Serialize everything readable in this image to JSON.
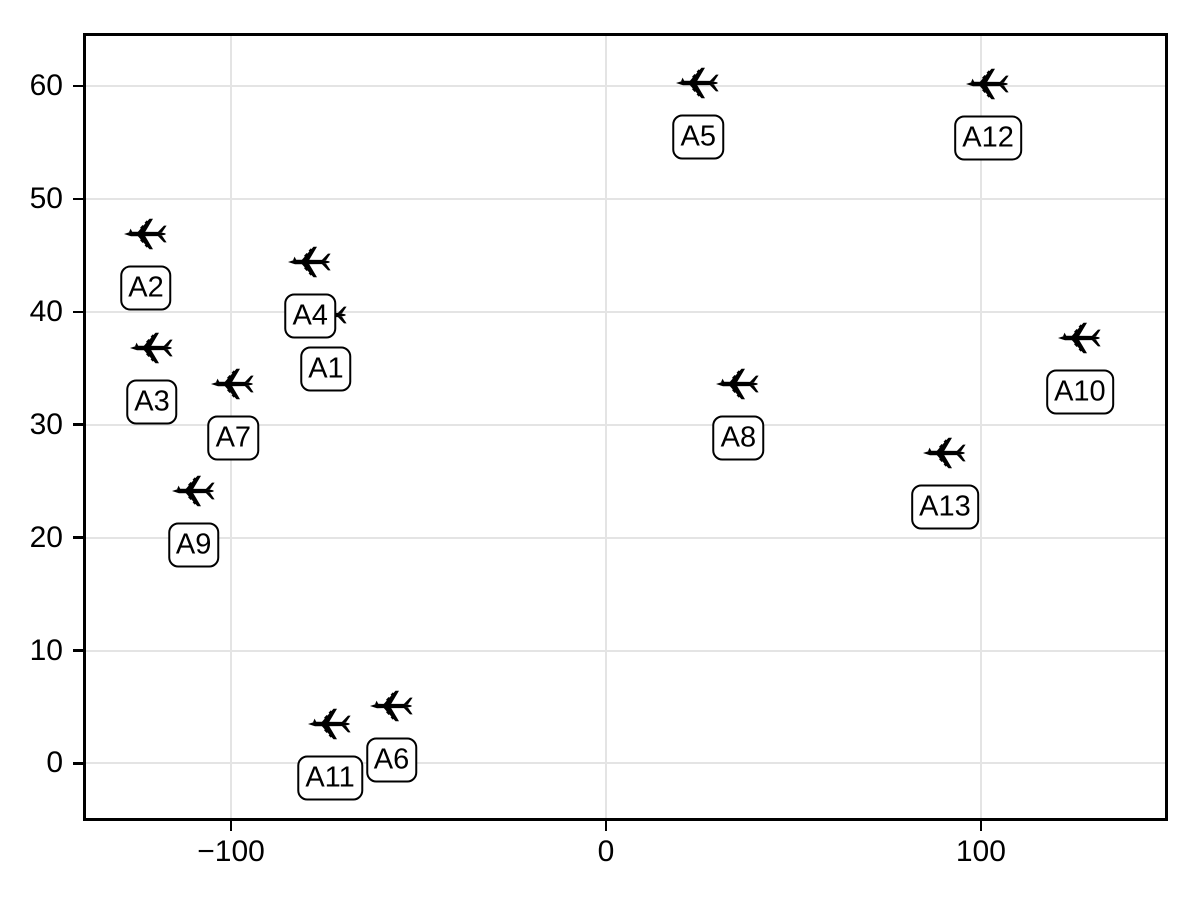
{
  "chart_data": {
    "type": "scatter",
    "title": "",
    "xlabel": "",
    "ylabel": "",
    "marker": "airplane",
    "grid": true,
    "legend": null,
    "xlim": [
      -139.5,
      149.9
    ],
    "ylim": [
      -5.1,
      64.7
    ],
    "x_ticks": [
      {
        "value": -100,
        "label": "−100"
      },
      {
        "value": 0,
        "label": "0"
      },
      {
        "value": 100,
        "label": "100"
      }
    ],
    "y_ticks": [
      {
        "value": 0,
        "label": "0"
      },
      {
        "value": 10,
        "label": "10"
      },
      {
        "value": 20,
        "label": "20"
      },
      {
        "value": 30,
        "label": "30"
      },
      {
        "value": 40,
        "label": "40"
      },
      {
        "value": 50,
        "label": "50"
      },
      {
        "value": 60,
        "label": "60"
      }
    ],
    "points": [
      {
        "label": "A1",
        "x": -74.7,
        "y": 39.7
      },
      {
        "label": "A2",
        "x": -122.7,
        "y": 46.9
      },
      {
        "label": "A3",
        "x": -121.1,
        "y": 36.8
      },
      {
        "label": "A4",
        "x": -78.9,
        "y": 44.4
      },
      {
        "label": "A5",
        "x": 24.6,
        "y": 60.3
      },
      {
        "label": "A6",
        "x": -57.2,
        "y": 5.1
      },
      {
        "label": "A7",
        "x": -99.4,
        "y": 33.6
      },
      {
        "label": "A8",
        "x": 35.3,
        "y": 33.6
      },
      {
        "label": "A9",
        "x": -110.0,
        "y": 24.1
      },
      {
        "label": "A10",
        "x": 126.4,
        "y": 37.7
      },
      {
        "label": "A11",
        "x": -73.6,
        "y": 3.5
      },
      {
        "label": "A12",
        "x": 101.9,
        "y": 60.2
      },
      {
        "label": "A13",
        "x": 90.4,
        "y": 27.5
      }
    ],
    "colors": {
      "marker": "#000000",
      "grid": "#e4e4e4",
      "axis": "#000000",
      "tick_text": "#000000",
      "label_bg": "#ffffff",
      "label_border": "#000000",
      "background": "#ffffff"
    }
  }
}
